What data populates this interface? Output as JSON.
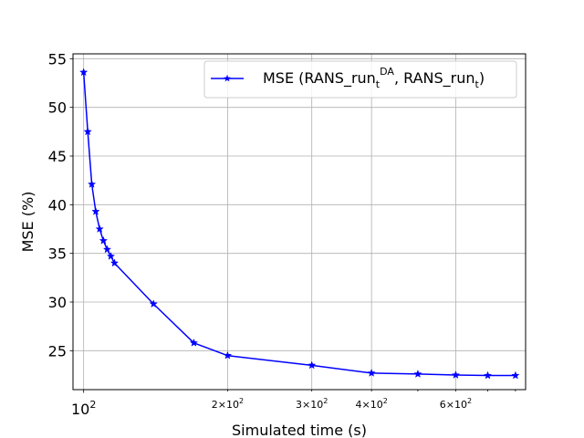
{
  "chart_data": {
    "type": "line",
    "title": "",
    "xlabel": "Simulated time (s)",
    "ylabel": "MSE (%)",
    "xscale": "log",
    "xlim": [
      95,
      840
    ],
    "ylim": [
      21,
      55.5
    ],
    "grid": true,
    "legend_position": "top-right",
    "series_color": "#0000ff",
    "marker": "star",
    "y_ticks": [
      25,
      30,
      35,
      40,
      45,
      50,
      55
    ],
    "x_ticks": [
      {
        "value": 100,
        "base": "10",
        "exp": "2"
      },
      {
        "value": 200,
        "base": "2×10",
        "exp": "2"
      },
      {
        "value": 300,
        "base": "3×10",
        "exp": "2"
      },
      {
        "value": 400,
        "base": "4×10",
        "exp": "2"
      },
      {
        "value": 600,
        "base": "6×10",
        "exp": "2"
      }
    ],
    "series": [
      {
        "legend": {
          "a": "MSE (RANS_run",
          "sub1": "t",
          "sup1": "DA",
          "b": ", RANS_run",
          "sub2": "t",
          "c": ")"
        },
        "x": [
          100,
          102,
          104,
          106,
          108,
          110,
          112,
          114,
          116,
          140,
          170,
          200,
          300,
          400,
          500,
          600,
          700,
          800
        ],
        "y": [
          53.6,
          47.5,
          42.1,
          39.3,
          37.5,
          36.3,
          35.4,
          34.7,
          34.0,
          29.8,
          25.8,
          24.5,
          23.5,
          22.7,
          22.6,
          22.5,
          22.45,
          22.45
        ]
      }
    ]
  }
}
